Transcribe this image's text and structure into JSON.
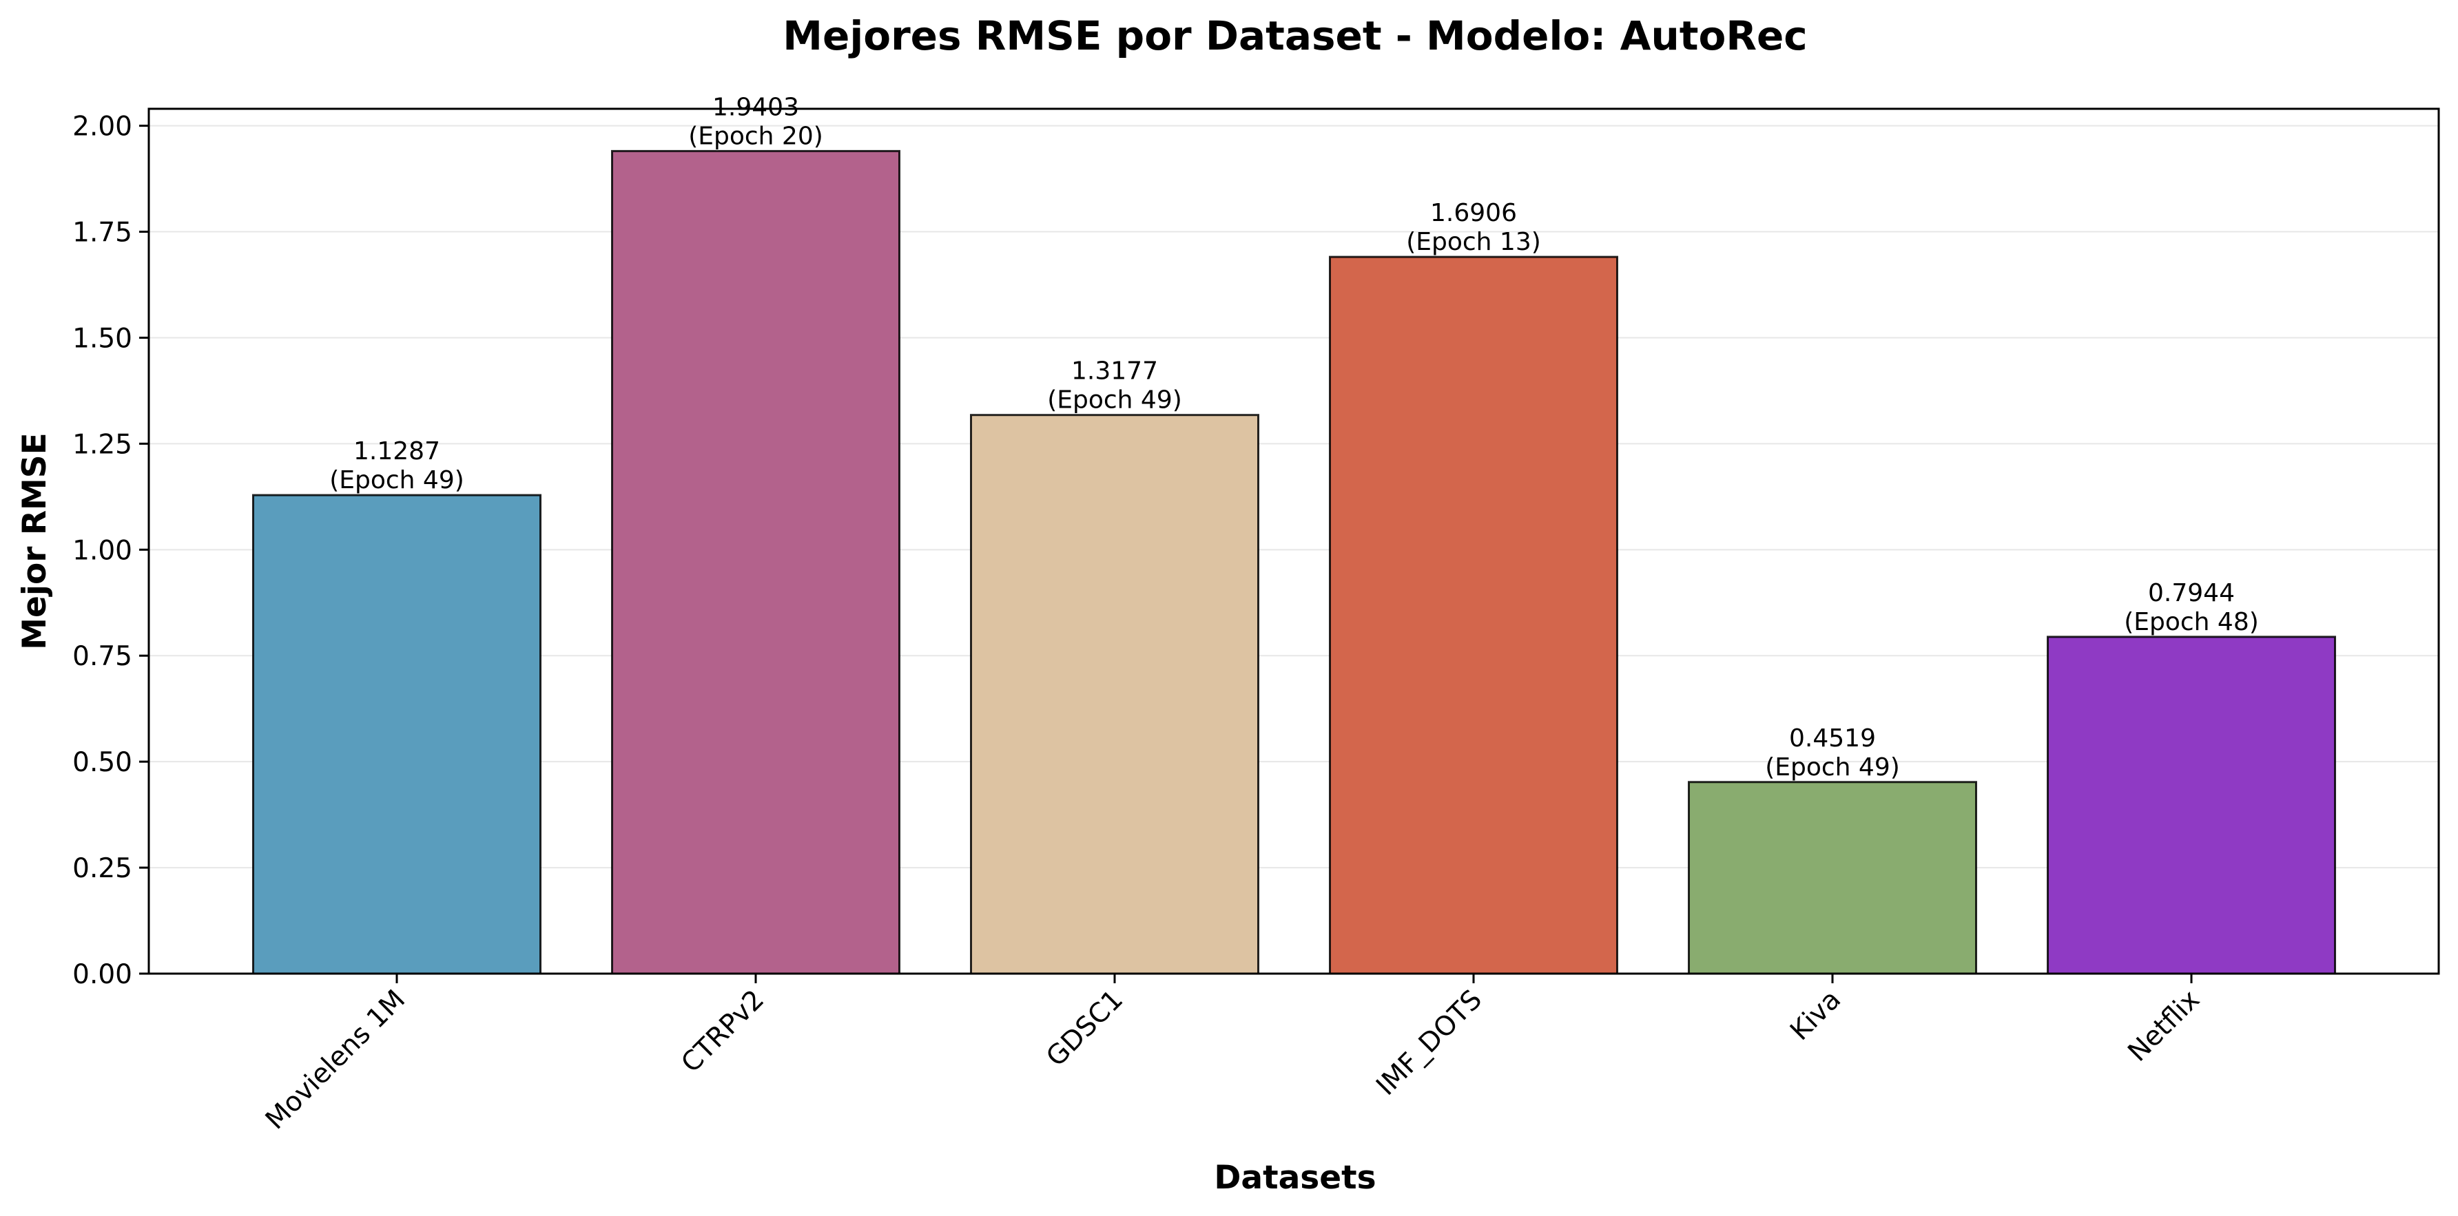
{
  "chart_data": {
    "type": "bar",
    "title": "Mejores RMSE por Dataset - Modelo: AutoRec",
    "xlabel": "Datasets",
    "ylabel": "Mejor RMSE",
    "categories": [
      "Movielens 1M",
      "CTRPv2",
      "GDSC1",
      "IMF_DOTS",
      "Kiva",
      "Netflix"
    ],
    "values": [
      1.1287,
      1.9403,
      1.3177,
      1.6906,
      0.4519,
      0.7944
    ],
    "value_labels": [
      "1.1287",
      "1.9403",
      "1.3177",
      "1.6906",
      "0.4519",
      "0.7944"
    ],
    "epoch_labels": [
      "(Epoch 49)",
      "(Epoch 20)",
      "(Epoch 49)",
      "(Epoch 13)",
      "(Epoch 49)",
      "(Epoch 48)"
    ],
    "colors": [
      "#5a9dbd",
      "#b3628c",
      "#ddc3a2",
      "#d3664c",
      "#89ac6f",
      "#8f3ac4"
    ],
    "ylim": [
      0,
      2.04
    ],
    "yticks": [
      "0.00",
      "0.25",
      "0.50",
      "0.75",
      "1.00",
      "1.25",
      "1.50",
      "1.75",
      "2.00"
    ],
    "grid": "horizontal",
    "legend": "none"
  }
}
